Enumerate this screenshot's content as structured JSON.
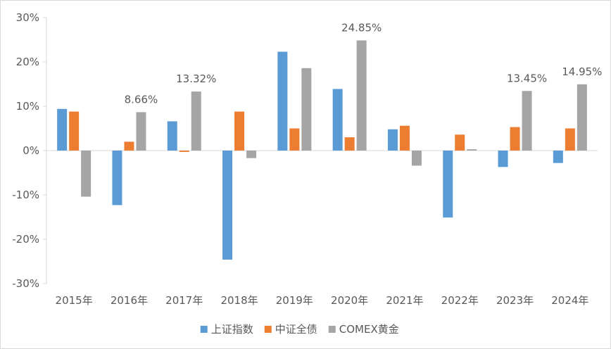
{
  "chart_data": {
    "type": "bar",
    "categories": [
      "2015年",
      "2016年",
      "2017年",
      "2018年",
      "2019年",
      "2020年",
      "2021年",
      "2022年",
      "2023年",
      "2024年"
    ],
    "series": [
      {
        "name": "上证指数",
        "color": "#5b9bd5",
        "values": [
          9.4,
          -12.3,
          6.6,
          -24.6,
          22.3,
          13.9,
          4.8,
          -15.1,
          -3.7,
          -2.8
        ]
      },
      {
        "name": "中证全债",
        "color": "#ed7d31",
        "values": [
          8.8,
          2.0,
          -0.3,
          8.8,
          5.0,
          3.0,
          5.6,
          3.6,
          5.3,
          5.0
        ]
      },
      {
        "name": "COMEX黄金",
        "color": "#a5a5a5",
        "values": [
          -10.4,
          8.66,
          13.32,
          -1.7,
          18.6,
          24.85,
          -3.4,
          0.3,
          13.45,
          14.95
        ]
      }
    ],
    "data_labels": [
      {
        "series": 2,
        "index": 1,
        "text": "8.66%"
      },
      {
        "series": 2,
        "index": 2,
        "text": "13.32%"
      },
      {
        "series": 2,
        "index": 5,
        "text": "24.85%"
      },
      {
        "series": 2,
        "index": 8,
        "text": "13.45%"
      },
      {
        "series": 2,
        "index": 9,
        "text": "14.95%"
      }
    ],
    "y_ticks": [
      30,
      20,
      10,
      0,
      -10,
      -20,
      -30
    ],
    "y_tick_labels": [
      "30%",
      "20%",
      "10%",
      "0%",
      "-10%",
      "-20%",
      "-30%"
    ],
    "ylim": [
      -30,
      30
    ],
    "grid": false,
    "legend_position": "bottom",
    "title": "",
    "xlabel": "",
    "ylabel": ""
  }
}
